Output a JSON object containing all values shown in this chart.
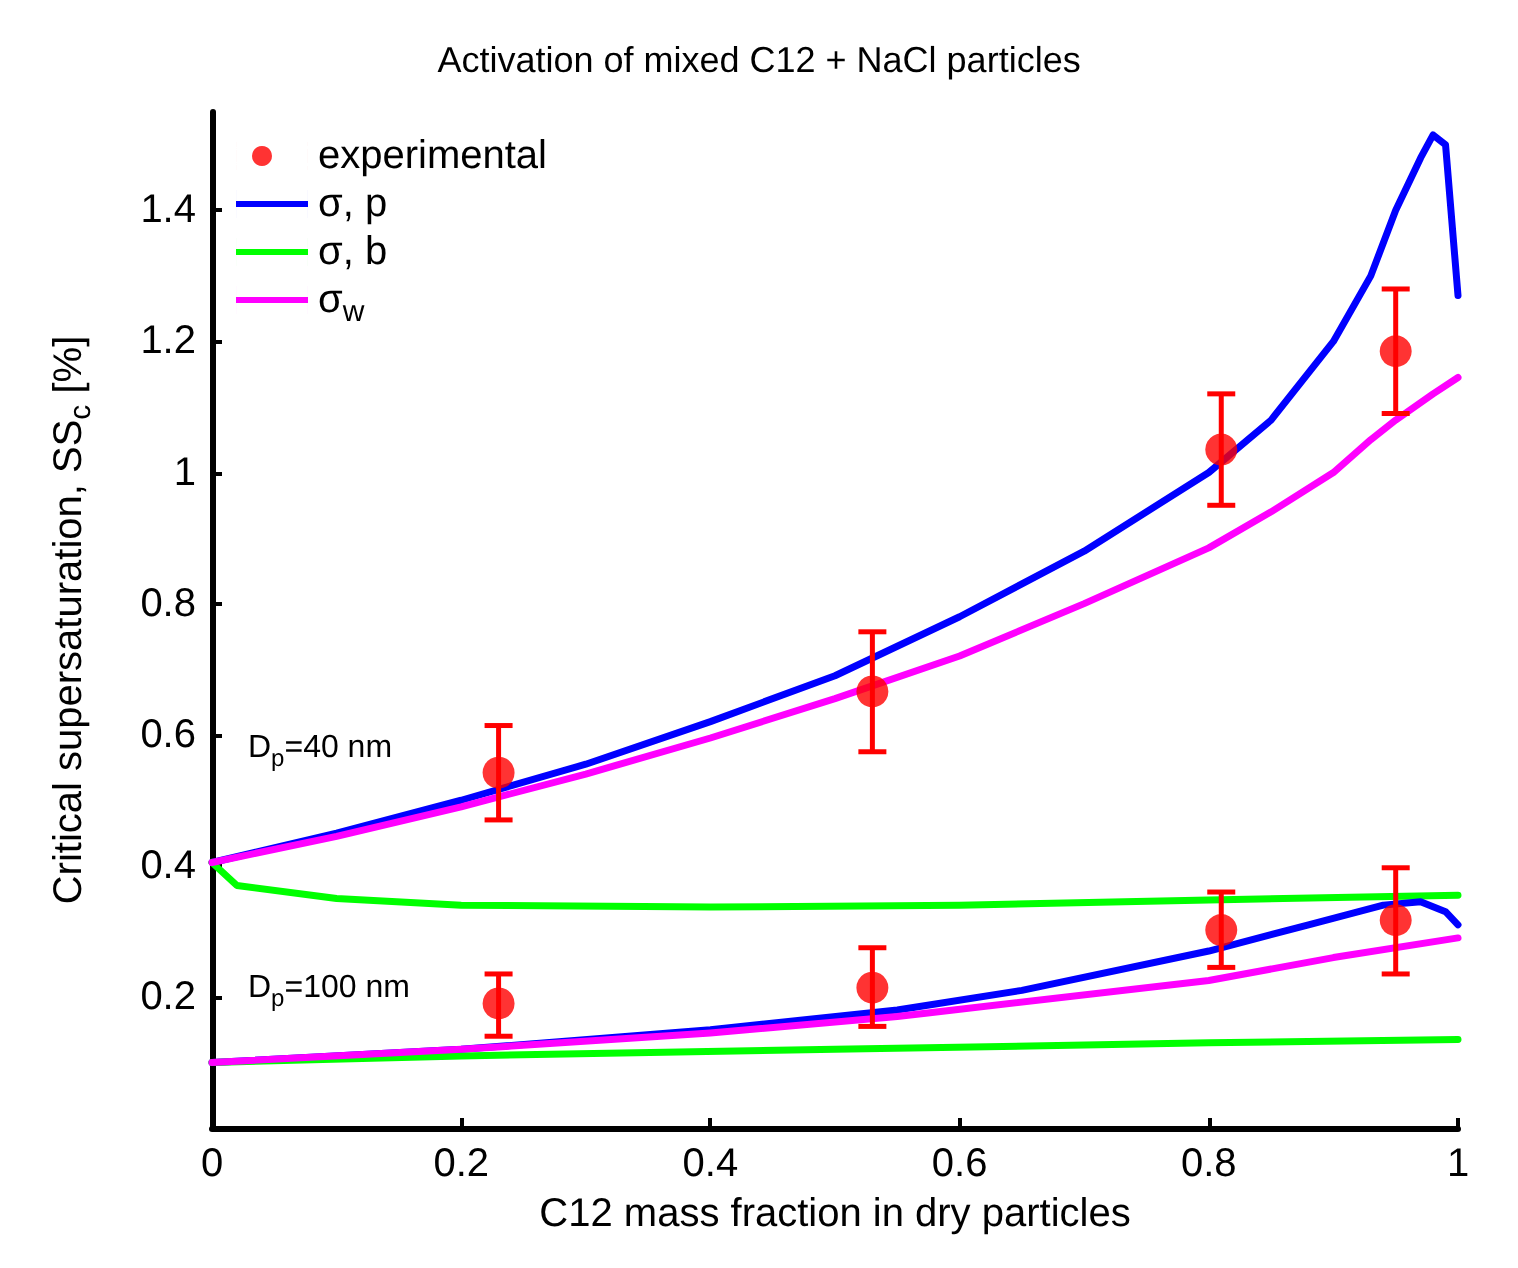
{
  "chart_data": {
    "type": "line",
    "title": "Activation of mixed C12 + NaCl particles",
    "xlabel": "C12 mass fraction in dry particles",
    "ylabel": "Critical supersaturation, SS$_{c}$ [%]",
    "xlim": [
      0,
      1
    ],
    "xticks": [
      0,
      0.2,
      0.4,
      0.6,
      0.8,
      1
    ],
    "ylim": [
      0,
      1.55
    ],
    "yticks": [
      0.2,
      0.4,
      0.6,
      0.8,
      1,
      1.2,
      1.4
    ],
    "grid": false,
    "legend": "top left",
    "line_style": "solid",
    "annotations": [
      "D$_{p}$=40 nm",
      "D$_{p}$=100 nm"
    ],
    "series": [
      {
        "name": "experimental",
        "type": "scatter",
        "marker": "circle",
        "color": "#ff0000",
        "x": [
          0.23,
          0.53,
          0.81,
          0.95,
          0.23,
          0.53,
          0.81,
          0.95
        ],
        "values": [
          0.542,
          0.666,
          1.035,
          1.185,
          0.19,
          0.214,
          0.302,
          0.317
        ],
        "errors": [
          [
            0.47,
            0.614
          ],
          [
            0.574,
            0.757
          ],
          [
            0.95,
            1.12
          ],
          [
            1.09,
            1.28
          ],
          [
            0.14,
            0.235
          ],
          [
            0.155,
            0.275
          ],
          [
            0.245,
            0.36
          ],
          [
            0.235,
            0.397
          ]
        ]
      },
      {
        "name": "σ, p",
        "color": "#0000ff",
        "x": [
          0,
          0.1,
          0.2,
          0.3,
          0.4,
          0.5,
          0.6,
          0.7,
          0.8,
          0.85,
          0.9,
          0.93,
          0.95,
          0.97,
          0.98,
          0.99,
          1
        ],
        "values": [
          0.405,
          0.45,
          0.5,
          0.555,
          0.62,
          0.69,
          0.78,
          0.88,
          1.0,
          1.08,
          1.2,
          1.3,
          1.4,
          1.48,
          1.515,
          1.5,
          1.27
        ]
      },
      {
        "name": "σ, b",
        "color": "#00ff00",
        "x": [
          0,
          0.02,
          0.1,
          0.2,
          0.4,
          0.6,
          0.8,
          1
        ],
        "values": [
          0.405,
          0.37,
          0.35,
          0.34,
          0.337,
          0.34,
          0.348,
          0.355
        ]
      },
      {
        "name": "σ$_{w}$",
        "color": "#ff00ff",
        "x": [
          0,
          0.1,
          0.2,
          0.3,
          0.4,
          0.5,
          0.6,
          0.7,
          0.8,
          0.85,
          0.9,
          0.93,
          0.95,
          0.98,
          1
        ],
        "values": [
          0.405,
          0.445,
          0.49,
          0.54,
          0.595,
          0.655,
          0.72,
          0.8,
          0.885,
          0.94,
          1.0,
          1.05,
          1.08,
          1.12,
          1.145
        ]
      },
      {
        "color": "#0000ff",
        "x": [
          0,
          0.2,
          0.4,
          0.55,
          0.65,
          0.8,
          0.88,
          0.94,
          0.97,
          0.99,
          1
        ],
        "values": [
          0.1,
          0.12,
          0.15,
          0.18,
          0.21,
          0.27,
          0.31,
          0.34,
          0.345,
          0.33,
          0.31
        ]
      },
      {
        "color": "#00ff00",
        "x": [
          0,
          0.2,
          0.5,
          0.8,
          1
        ],
        "values": [
          0.1,
          0.11,
          0.12,
          0.13,
          0.135
        ]
      },
      {
        "color": "#ff00ff",
        "x": [
          0,
          0.2,
          0.4,
          0.55,
          0.8,
          0.9,
          1
        ],
        "values": [
          0.1,
          0.12,
          0.145,
          0.17,
          0.225,
          0.26,
          0.29
        ]
      }
    ]
  }
}
